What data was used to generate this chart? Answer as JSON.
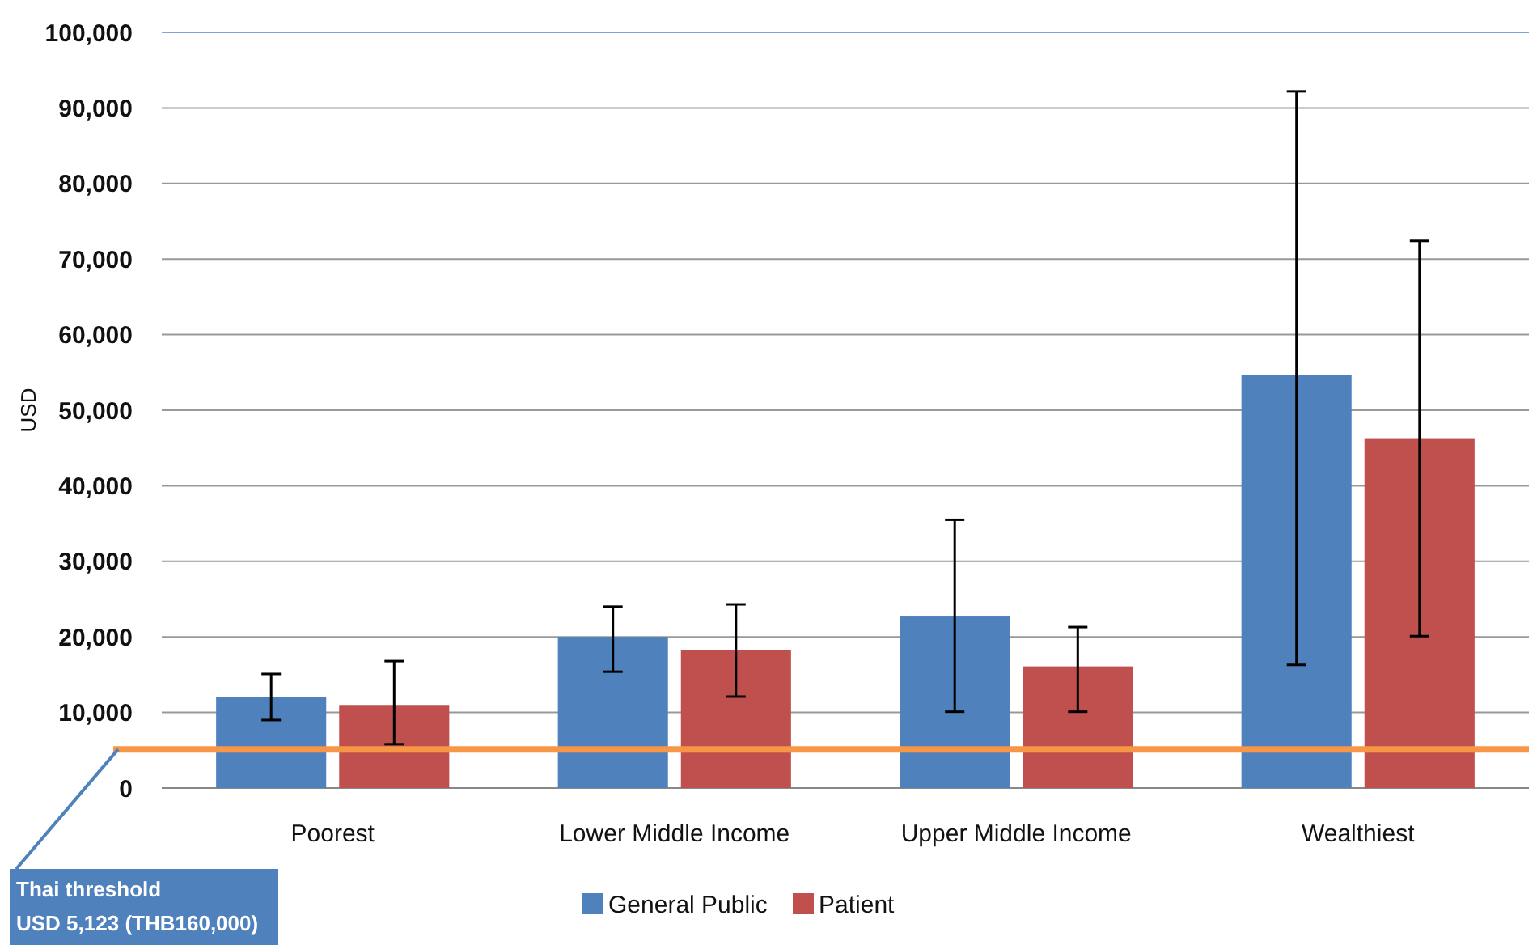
{
  "chart_data": {
    "type": "bar",
    "ylabel": "USD",
    "categories": [
      "Poorest",
      "Lower Middle Income",
      "Upper Middle Income",
      "Wealthiest"
    ],
    "series": [
      {
        "name": "General Public",
        "color": "#4f81bd",
        "values": [
          12000,
          20000,
          22800,
          54700
        ],
        "errors": [
          [
            9000,
            15100
          ],
          [
            15400,
            24000
          ],
          [
            10100,
            35500
          ],
          [
            16300,
            92200
          ]
        ]
      },
      {
        "name": "Patient",
        "color": "#c0504d",
        "values": [
          11000,
          18300,
          16100,
          46300
        ],
        "errors": [
          [
            5800,
            16800
          ],
          [
            12100,
            24300
          ],
          [
            10100,
            21300
          ],
          [
            20100,
            72400
          ]
        ]
      }
    ],
    "ylim": [
      0,
      100000
    ],
    "yticks": [
      {
        "value": 0,
        "label": "0"
      },
      {
        "value": 10000,
        "label": "10,000"
      },
      {
        "value": 20000,
        "label": "20,000"
      },
      {
        "value": 30000,
        "label": "30,000"
      },
      {
        "value": 40000,
        "label": "40,000"
      },
      {
        "value": 50000,
        "label": "50,000"
      },
      {
        "value": 60000,
        "label": "60,000"
      },
      {
        "value": 70000,
        "label": "70,000"
      },
      {
        "value": 80000,
        "label": "80,000"
      },
      {
        "value": 90000,
        "label": "90,000"
      },
      {
        "value": 100000,
        "label": "100,000"
      }
    ],
    "grid": "y",
    "legend": "bottom",
    "ref_lines": [
      {
        "axis": "y",
        "value": 5123,
        "label": "Thai threshold\nUSD 5,123 (THB160,000)",
        "color": "#f79646"
      }
    ]
  }
}
